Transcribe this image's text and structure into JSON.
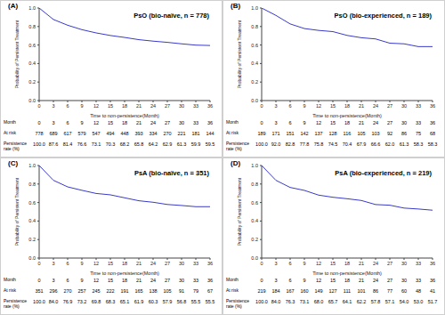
{
  "chart_data": [
    {
      "type": "line",
      "label": "(A)",
      "title": "PsO (bio-naïve, n = 778)",
      "x_label": "Time to non-persistence(Month)",
      "y_label": "Probability of Persistent Treatment",
      "x": [
        0,
        3,
        6,
        9,
        12,
        15,
        18,
        21,
        24,
        27,
        30,
        33,
        36
      ],
      "values": [
        1.0,
        0.876,
        0.814,
        0.766,
        0.731,
        0.703,
        0.682,
        0.658,
        0.642,
        0.629,
        0.613,
        0.599,
        0.595
      ],
      "color": "#3a3ac8",
      "line_style": "solid",
      "xlim": [
        0,
        36
      ],
      "xticks": [
        0,
        3,
        6,
        9,
        12,
        15,
        18,
        21,
        24,
        27,
        30,
        33,
        36
      ],
      "ylim": [
        0,
        1.0
      ],
      "yticks": [
        {
          "value": 0,
          "label": "0.0"
        },
        {
          "value": 0.2,
          "label": "0.2"
        },
        {
          "value": 0.4,
          "label": "0.4"
        },
        {
          "value": 0.6,
          "label": "0.6"
        },
        {
          "value": 0.8,
          "label": "0.8"
        },
        {
          "value": 1.0,
          "label": "1.0"
        }
      ],
      "at_risk_table": [
        {
          "label": "Month",
          "cells": [
            "0",
            "3",
            "6",
            "9",
            "12",
            "15",
            "18",
            "21",
            "24",
            "27",
            "30",
            "33",
            "36"
          ]
        },
        {
          "label": "At risk",
          "cells": [
            "778",
            "689",
            "617",
            "579",
            "547",
            "494",
            "448",
            "393",
            "334",
            "270",
            "221",
            "181",
            "144"
          ]
        },
        {
          "label": "Persistence rate (%)",
          "cells": [
            "100.0",
            "87.6",
            "81.4",
            "76.6",
            "73.1",
            "70.3",
            "68.2",
            "65.8",
            "64.2",
            "62.9",
            "61.3",
            "59.9",
            "59.5"
          ]
        }
      ]
    },
    {
      "type": "line",
      "label": "(B)",
      "title": "PsO (bio-experienced, n = 189)",
      "x_label": "Time to non-persistence(Month)",
      "y_label": "Probability of Persistent Treatment",
      "x": [
        0,
        3,
        6,
        9,
        12,
        15,
        18,
        21,
        24,
        27,
        30,
        33,
        36
      ],
      "values": [
        1.0,
        0.92,
        0.828,
        0.778,
        0.758,
        0.745,
        0.704,
        0.679,
        0.666,
        0.62,
        0.613,
        0.583,
        0.583
      ],
      "color": "#3a3ac8",
      "line_style": "solid",
      "xlim": [
        0,
        36
      ],
      "xticks": [
        0,
        3,
        6,
        9,
        12,
        15,
        18,
        21,
        24,
        27,
        30,
        33,
        36
      ],
      "ylim": [
        0,
        1.0
      ],
      "yticks": [
        {
          "value": 0,
          "label": "0.0"
        },
        {
          "value": 0.2,
          "label": "0.2"
        },
        {
          "value": 0.4,
          "label": "0.4"
        },
        {
          "value": 0.6,
          "label": "0.6"
        },
        {
          "value": 0.8,
          "label": "0.8"
        },
        {
          "value": 1.0,
          "label": "1.0"
        }
      ],
      "at_risk_table": [
        {
          "label": "Month",
          "cells": [
            "0",
            "3",
            "6",
            "9",
            "12",
            "15",
            "18",
            "21",
            "24",
            "27",
            "30",
            "33",
            "36"
          ]
        },
        {
          "label": "At risk",
          "cells": [
            "189",
            "171",
            "151",
            "142",
            "137",
            "128",
            "116",
            "105",
            "103",
            "92",
            "86",
            "75",
            "68"
          ]
        },
        {
          "label": "Persistence rate (%)",
          "cells": [
            "100.0",
            "92.0",
            "82.8",
            "77.8",
            "75.8",
            "74.5",
            "70.4",
            "67.9",
            "66.6",
            "62.0",
            "61.3",
            "58.3",
            "58.3"
          ]
        }
      ]
    },
    {
      "type": "line",
      "label": "(C)",
      "title": "PsA (bio-naïve, n = 351)",
      "x_label": "Time to non-persistence(Month)",
      "y_label": "Probability of Persistent Treatment",
      "x": [
        0,
        3,
        6,
        9,
        12,
        15,
        18,
        21,
        24,
        27,
        30,
        33,
        36
      ],
      "values": [
        1.0,
        0.84,
        0.769,
        0.732,
        0.698,
        0.683,
        0.651,
        0.619,
        0.603,
        0.579,
        0.568,
        0.555,
        0.555
      ],
      "color": "#3a3ac8",
      "line_style": "solid",
      "xlim": [
        0,
        36
      ],
      "xticks": [
        0,
        3,
        6,
        9,
        12,
        15,
        18,
        21,
        24,
        27,
        30,
        33,
        36
      ],
      "ylim": [
        0,
        1.0
      ],
      "yticks": [
        {
          "value": 0,
          "label": "0.0"
        },
        {
          "value": 0.2,
          "label": "0.2"
        },
        {
          "value": 0.4,
          "label": "0.4"
        },
        {
          "value": 0.6,
          "label": "0.6"
        },
        {
          "value": 0.8,
          "label": "0.8"
        },
        {
          "value": 1.0,
          "label": "1.0"
        }
      ],
      "at_risk_table": [
        {
          "label": "Month",
          "cells": [
            "0",
            "3",
            "6",
            "9",
            "12",
            "15",
            "18",
            "21",
            "24",
            "27",
            "30",
            "33",
            "36"
          ]
        },
        {
          "label": "At risk",
          "cells": [
            "351",
            "296",
            "270",
            "257",
            "245",
            "222",
            "191",
            "165",
            "138",
            "105",
            "91",
            "79",
            "67"
          ]
        },
        {
          "label": "Persistence rate (%)",
          "cells": [
            "100.0",
            "84.0",
            "76.9",
            "73.2",
            "69.8",
            "68.3",
            "65.1",
            "61.9",
            "60.3",
            "57.9",
            "56.8",
            "55.5",
            "55.5"
          ]
        }
      ]
    },
    {
      "type": "line",
      "label": "(D)",
      "title": "PsA (bio-experienced, n = 219)",
      "x_label": "Time to non-persistence(Month)",
      "y_label": "Probability of Persistent Treatment",
      "x": [
        0,
        3,
        6,
        9,
        12,
        15,
        18,
        21,
        24,
        27,
        30,
        33,
        36
      ],
      "values": [
        1.0,
        0.84,
        0.763,
        0.731,
        0.68,
        0.657,
        0.641,
        0.622,
        0.578,
        0.571,
        0.54,
        0.53,
        0.517
      ],
      "color": "#3a3ac8",
      "line_style": "solid",
      "xlim": [
        0,
        36
      ],
      "xticks": [
        0,
        3,
        6,
        9,
        12,
        15,
        18,
        21,
        24,
        27,
        30,
        33,
        36
      ],
      "ylim": [
        0,
        1.0
      ],
      "yticks": [
        {
          "value": 0,
          "label": "0.0"
        },
        {
          "value": 0.2,
          "label": "0.2"
        },
        {
          "value": 0.4,
          "label": "0.4"
        },
        {
          "value": 0.6,
          "label": "0.6"
        },
        {
          "value": 0.8,
          "label": "0.8"
        },
        {
          "value": 1.0,
          "label": "1.0"
        }
      ],
      "at_risk_table": [
        {
          "label": "Month",
          "cells": [
            "0",
            "3",
            "6",
            "9",
            "12",
            "15",
            "18",
            "21",
            "24",
            "27",
            "30",
            "33",
            "36"
          ]
        },
        {
          "label": "At risk",
          "cells": [
            "219",
            "184",
            "167",
            "160",
            "149",
            "127",
            "111",
            "101",
            "86",
            "77",
            "60",
            "48",
            "41"
          ]
        },
        {
          "label": "Persistence rate (%)",
          "cells": [
            "100.0",
            "84.0",
            "76.3",
            "73.1",
            "68.0",
            "65.7",
            "64.1",
            "62.2",
            "57.8",
            "57.1",
            "54.0",
            "53.0",
            "51.7"
          ]
        }
      ]
    }
  ]
}
